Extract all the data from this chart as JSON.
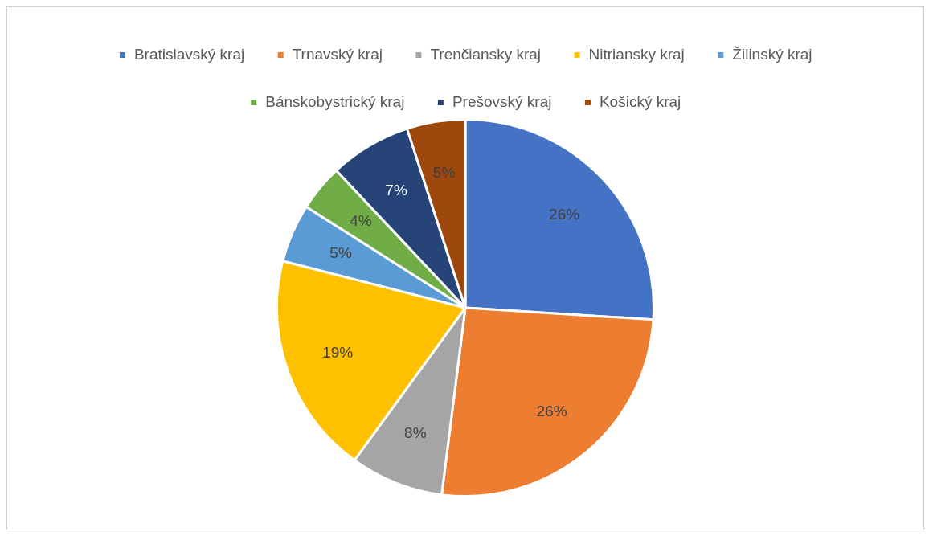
{
  "chart_data": {
    "type": "pie",
    "categories": [
      "Bratislavský kraj",
      "Trnavský kraj",
      "Trenčiansky kraj",
      "Nitriansky kraj",
      "Žilinský kraj",
      "Bánskobystrický kraj",
      "Prešovský kraj",
      "Košický kraj"
    ],
    "values": [
      26,
      26,
      8,
      19,
      5,
      4,
      7,
      5
    ],
    "value_labels": [
      "26%",
      "26%",
      "8%",
      "19%",
      "5%",
      "4%",
      "7%",
      "5%"
    ],
    "colors": [
      "#4472c4",
      "#ed7d31",
      "#a5a5a5",
      "#ffc000",
      "#5b9bd5",
      "#70ad47",
      "#264478",
      "#9e480e"
    ],
    "legend": "top"
  }
}
